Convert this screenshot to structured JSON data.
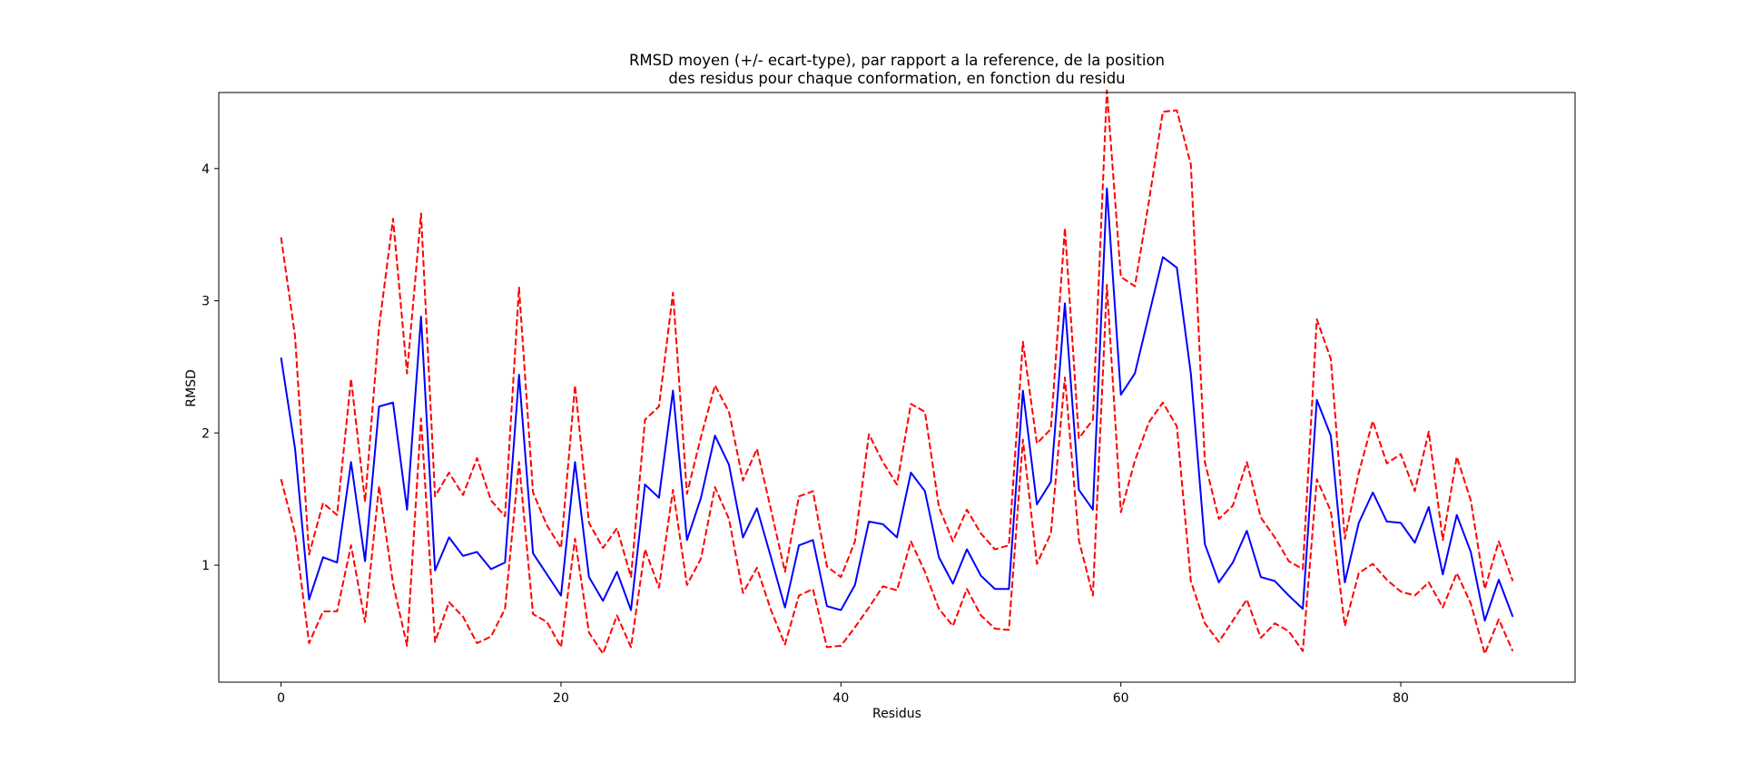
{
  "chart_data": {
    "type": "line",
    "title_lines": [
      "RMSD moyen (+/- ecart-type), par rapport a la reference, de la position",
      "des residus pour chaque conformation, en fonction du residu"
    ],
    "xlabel": "Residus",
    "ylabel": "RMSD",
    "xlim": [
      -4.45,
      92.45
    ],
    "ylim": [
      0.115,
      4.575
    ],
    "xticks": [
      0,
      20,
      40,
      60,
      80
    ],
    "yticks": [
      1,
      2,
      3,
      4
    ],
    "grid": false,
    "legend": "none",
    "colors": {
      "mean": "#0000ff",
      "std": "#ff0000"
    },
    "series": [
      {
        "role": "mean",
        "style": "solid",
        "values": [
          2.57,
          1.88,
          0.74,
          1.06,
          1.02,
          1.78,
          1.03,
          2.2,
          2.23,
          1.42,
          2.88,
          0.96,
          1.21,
          1.07,
          1.1,
          0.97,
          1.02,
          2.44,
          1.09,
          0.93,
          0.77,
          1.78,
          0.91,
          0.73,
          0.95,
          0.66,
          1.61,
          1.51,
          2.32,
          1.19,
          1.51,
          1.98,
          1.76,
          1.21,
          1.43,
          1.06,
          0.68,
          1.15,
          1.19,
          0.69,
          0.66,
          0.85,
          1.33,
          1.31,
          1.21,
          1.7,
          1.56,
          1.06,
          0.86,
          1.12,
          0.92,
          0.82,
          0.82,
          2.32,
          1.46,
          1.63,
          2.98,
          1.57,
          1.42,
          3.85,
          2.29,
          2.45,
          2.89,
          3.33,
          3.25,
          2.45,
          1.16,
          0.87,
          1.02,
          1.26,
          0.91,
          0.88,
          0.77,
          0.67,
          2.25,
          1.98,
          0.87,
          1.32,
          1.55,
          1.33,
          1.32,
          1.17,
          1.44,
          0.93,
          1.38,
          1.1,
          0.58,
          0.89,
          0.61
        ]
      },
      {
        "role": "mean+std",
        "style": "dashed",
        "values": [
          3.48,
          2.73,
          1.08,
          1.47,
          1.38,
          2.41,
          1.48,
          2.8,
          3.62,
          2.45,
          3.66,
          1.52,
          1.7,
          1.53,
          1.81,
          1.49,
          1.37,
          3.1,
          1.55,
          1.3,
          1.13,
          2.36,
          1.32,
          1.13,
          1.28,
          0.91,
          2.1,
          2.2,
          3.06,
          1.54,
          1.97,
          2.36,
          2.16,
          1.64,
          1.88,
          1.42,
          0.95,
          1.52,
          1.56,
          0.99,
          0.91,
          1.18,
          1.99,
          1.78,
          1.61,
          2.22,
          2.16,
          1.44,
          1.18,
          1.42,
          1.24,
          1.12,
          1.15,
          2.69,
          1.92,
          2.03,
          3.55,
          1.96,
          2.1,
          4.59,
          3.18,
          3.11,
          3.75,
          4.43,
          4.44,
          4.03,
          1.78,
          1.35,
          1.45,
          1.78,
          1.36,
          1.21,
          1.03,
          0.97,
          2.86,
          2.56,
          1.2,
          1.7,
          2.09,
          1.77,
          1.84,
          1.56,
          2.01,
          1.19,
          1.82,
          1.49,
          0.82,
          1.18,
          0.88
        ]
      },
      {
        "role": "mean-std",
        "style": "dashed",
        "values": [
          1.65,
          1.24,
          0.41,
          0.65,
          0.65,
          1.15,
          0.57,
          1.6,
          0.86,
          0.39,
          2.11,
          0.42,
          0.72,
          0.61,
          0.41,
          0.46,
          0.67,
          1.78,
          0.63,
          0.57,
          0.38,
          1.2,
          0.49,
          0.33,
          0.62,
          0.38,
          1.12,
          0.83,
          1.57,
          0.85,
          1.05,
          1.59,
          1.35,
          0.79,
          0.98,
          0.66,
          0.4,
          0.77,
          0.82,
          0.38,
          0.39,
          0.53,
          0.68,
          0.84,
          0.81,
          1.18,
          0.95,
          0.67,
          0.54,
          0.82,
          0.62,
          0.52,
          0.51,
          1.95,
          1.01,
          1.24,
          2.42,
          1.19,
          0.77,
          3.12,
          1.4,
          1.79,
          2.08,
          2.23,
          2.05,
          0.88,
          0.56,
          0.42,
          0.58,
          0.74,
          0.45,
          0.56,
          0.5,
          0.35,
          1.65,
          1.41,
          0.54,
          0.94,
          1.01,
          0.89,
          0.8,
          0.77,
          0.87,
          0.68,
          0.94,
          0.71,
          0.33,
          0.59,
          0.35
        ]
      }
    ]
  }
}
